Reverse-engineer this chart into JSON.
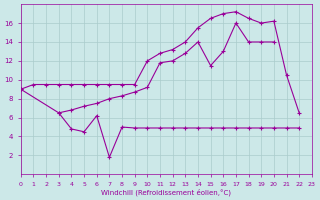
{
  "bg_color": "#cce8e8",
  "line_color": "#990099",
  "grid_color": "#aacccc",
  "xlabel": "Windchill (Refroidissement éolien,°C)",
  "xlim": [
    0,
    23
  ],
  "ylim": [
    0,
    18
  ],
  "yticks": [
    2,
    4,
    6,
    8,
    10,
    12,
    14,
    16
  ],
  "line1_x": [
    0,
    1,
    2,
    3,
    4,
    5,
    6,
    7,
    8,
    9,
    10,
    11,
    12,
    13,
    14,
    15,
    16,
    17,
    18,
    19,
    20,
    21,
    22
  ],
  "line1_y": [
    9.0,
    9.5,
    9.5,
    9.5,
    9.5,
    9.5,
    9.5,
    9.5,
    9.5,
    9.5,
    12.0,
    12.8,
    13.2,
    14.0,
    15.5,
    16.5,
    17.0,
    17.2,
    16.5,
    16.0,
    16.2,
    10.5,
    6.5
  ],
  "line2_x": [
    0,
    3,
    4,
    5,
    6,
    7,
    8,
    9,
    10,
    11,
    12,
    13,
    14,
    15,
    16,
    17,
    18,
    19,
    20
  ],
  "line2_y": [
    9.0,
    6.5,
    6.8,
    7.2,
    7.5,
    8.0,
    8.3,
    8.7,
    9.2,
    11.8,
    12.0,
    12.8,
    14.0,
    11.5,
    13.0,
    16.0,
    14.0,
    14.0,
    14.0
  ],
  "line3_x": [
    3,
    4,
    5,
    6,
    7,
    8,
    9,
    10,
    11,
    12,
    13,
    14,
    15,
    16,
    17,
    18,
    19,
    20,
    21,
    22
  ],
  "line3_y": [
    6.5,
    4.8,
    4.5,
    6.2,
    1.8,
    5.0,
    4.9,
    4.9,
    4.9,
    4.9,
    4.9,
    4.9,
    4.9,
    4.9,
    4.9,
    4.9,
    4.9,
    4.9,
    4.9,
    4.9
  ],
  "marker_size": 2.0,
  "line_width": 0.8
}
